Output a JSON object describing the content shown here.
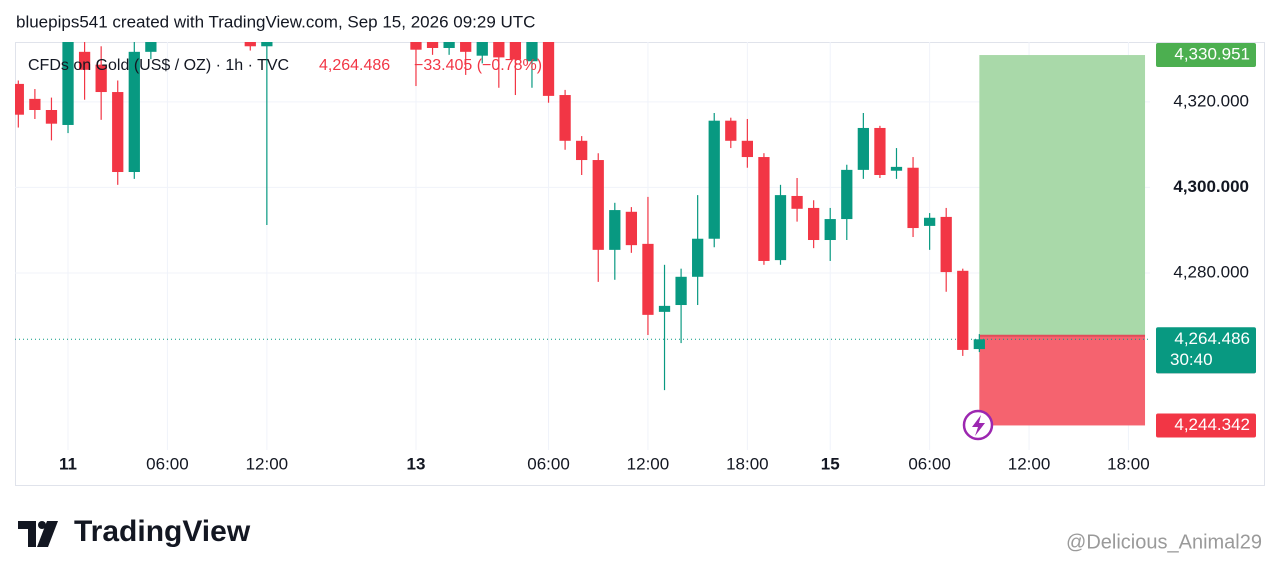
{
  "header": "bluepips541 created with TradingView.com, Sep 15, 2026 09:29 UTC",
  "chart_data": {
    "type": "candlestick",
    "symbol": "CFDs on Gold (US$ / OZ) · 1h · TVC",
    "change": "−33.405 (−0.78%)",
    "up_color": "#089981",
    "down_color": "#f23645",
    "x": [
      0,
      1,
      2,
      3,
      4,
      5,
      6,
      7,
      8,
      14,
      15,
      24,
      25,
      26,
      27,
      28,
      29,
      30,
      31,
      32,
      33,
      34,
      35,
      36,
      37,
      38,
      39,
      40,
      41,
      42,
      43,
      44,
      45,
      46,
      47,
      48,
      49,
      50,
      51,
      52,
      53,
      54,
      55,
      56,
      57,
      58
    ],
    "open": [
      4324.2,
      4320.7,
      4318.1,
      4314.6,
      4331.7,
      4328.7,
      4322.3,
      4303.6,
      4331.7,
      4336,
      4333,
      4336,
      4336,
      4332.6,
      4336,
      4330.8,
      4336,
      4336,
      4329.5,
      4336,
      4321.6,
      4310.9,
      4306.4,
      4285.4,
      4294.3,
      4286.8,
      4270.9,
      4272.5,
      4279.1,
      4288,
      4315.6,
      4310.9,
      4307.1,
      4283,
      4298,
      4295.2,
      4287.7,
      4292.6,
      4304.1,
      4313.9,
      4303.9,
      4304.6,
      4291,
      4293.1,
      4280.5,
      4262.2
    ],
    "high": [
      4325,
      4323,
      4321,
      4338,
      4334,
      4333,
      4325,
      4336,
      4338,
      4338,
      4338,
      4338,
      4338,
      4338,
      4338,
      4338,
      4338,
      4338,
      4338,
      4338,
      4322.8,
      4312,
      4308,
      4296.4,
      4295.4,
      4297.8,
      4281.9,
      4281,
      4298.2,
      4317.4,
      4316.3,
      4316,
      4308,
      4300.6,
      4302.2,
      4297,
      4295.2,
      4305.3,
      4317.4,
      4314.4,
      4309.2,
      4307.1,
      4294,
      4295.2,
      4281,
      4265.7
    ],
    "low": [
      4314,
      4316,
      4311,
      4312.7,
      4320.5,
      4315.8,
      4300.6,
      4302,
      4330,
      4332,
      4291.2,
      4323.7,
      4331,
      4331,
      4326.3,
      4329,
      4323.3,
      4321.6,
      4323.3,
      4319.8,
      4308.8,
      4302.9,
      4277.9,
      4278.4,
      4284.7,
      4265.5,
      4252.6,
      4263.6,
      4272.5,
      4286,
      4309.2,
      4304.6,
      4281.9,
      4281.9,
      4292,
      4285.8,
      4282.8,
      4287.7,
      4302,
      4302.2,
      4302,
      4288.4,
      4285.4,
      4275.6,
      4260.6,
      4261.5
    ],
    "close": [
      4317,
      4318.1,
      4314.9,
      4336,
      4327.5,
      4322.3,
      4303.6,
      4331.7,
      4336,
      4333,
      4336,
      4332.2,
      4332.6,
      4336,
      4331.7,
      4336,
      4330.4,
      4329.9,
      4336,
      4321.4,
      4310.9,
      4306.4,
      4285.4,
      4294.7,
      4286.5,
      4270.2,
      4272.3,
      4279.1,
      4288,
      4315.6,
      4310.9,
      4307.1,
      4282.8,
      4298.2,
      4295,
      4287.7,
      4292.6,
      4304.1,
      4313.9,
      4302.9,
      4304.8,
      4290.5,
      4292.9,
      4280.2,
      4262,
      4264.486
    ],
    "xlim": [
      -0.2,
      68.3
    ],
    "xticks": [
      {
        "value": 3,
        "label": "11"
      },
      {
        "value": 9,
        "label": "06:00"
      },
      {
        "value": 15,
        "label": "12:00"
      },
      {
        "value": 24,
        "label": "13"
      },
      {
        "value": 32,
        "label": "06:00"
      },
      {
        "value": 38,
        "label": "12:00"
      },
      {
        "value": 44,
        "label": "18:00"
      },
      {
        "value": 49,
        "label": "15"
      },
      {
        "value": 55,
        "label": "06:00"
      },
      {
        "value": 61,
        "label": "12:00"
      },
      {
        "value": 67,
        "label": "18:00"
      }
    ],
    "ylim": [
      4238.6,
      4334
    ],
    "yticks": [
      {
        "value": 4280,
        "label": "4,280.000"
      },
      {
        "value": 4300,
        "label": "4,300.000"
      },
      {
        "value": 4320,
        "label": "4,320.000"
      }
    ],
    "last_price": {
      "value": 4264.486,
      "label": "4,264.486"
    },
    "countdown": "30:40",
    "position": {
      "x": [
        58,
        68
      ],
      "entry": {
        "value": 4265.327,
        "label": "4,265.327"
      },
      "target": {
        "value": 4330.951,
        "label": "4,330.951"
      },
      "stop": {
        "value": 4244.342,
        "label": "4,244.342"
      }
    }
  },
  "footer": {
    "logo": "TradingView",
    "watermark": "@Delicious_Animal29"
  }
}
